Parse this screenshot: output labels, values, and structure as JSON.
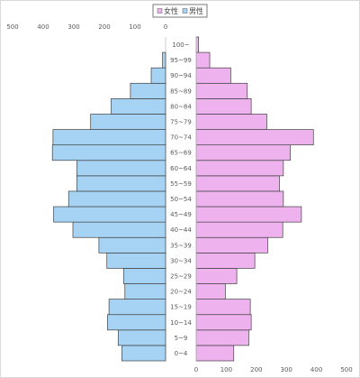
{
  "chart_data": {
    "type": "bar",
    "orientation": "horizontal-butterfly",
    "categories": [
      "0~4",
      "5~9",
      "10~14",
      "15~19",
      "20~24",
      "25~29",
      "30~34",
      "35~39",
      "40~44",
      "45~49",
      "50~54",
      "55~59",
      "60~64",
      "65~69",
      "70~74",
      "75~79",
      "80~84",
      "85~89",
      "90~94",
      "95~99",
      "100~"
    ],
    "series": [
      {
        "name": "女性",
        "color": "#eeb2ee",
        "side": "right",
        "values": [
          125,
          175,
          183,
          180,
          97,
          135,
          195,
          238,
          288,
          350,
          290,
          277,
          290,
          313,
          390,
          235,
          183,
          170,
          115,
          45,
          8
        ]
      },
      {
        "name": "男性",
        "color": "#a6d3f3",
        "side": "left",
        "values": [
          143,
          155,
          190,
          185,
          133,
          137,
          192,
          218,
          303,
          366,
          317,
          290,
          290,
          370,
          368,
          245,
          178,
          115,
          47,
          10,
          0
        ]
      }
    ],
    "left_axis": {
      "ticks": [
        500,
        400,
        300,
        200,
        100,
        0
      ],
      "max": 500
    },
    "right_axis": {
      "ticks": [
        0,
        100,
        200,
        300,
        400,
        500
      ],
      "max": 500
    },
    "legend": "top-center",
    "grid": false
  }
}
